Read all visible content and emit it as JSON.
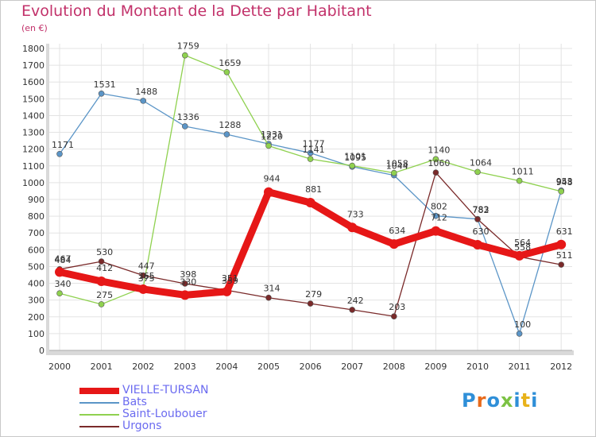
{
  "page": {
    "title": "Evolution du Montant de la Dette par Habitant",
    "unit": "(en €)",
    "logo": "Proxiti"
  },
  "colors": {
    "title": "#c2316a",
    "axis_text": "#333333",
    "grid": "#e3e3e3",
    "plot_bg": "#ffffff",
    "frame_bg": "#d9d9d9",
    "legend_text": "#6b6bf0",
    "logo_letters": [
      "#2f8fd8",
      "#e86a1a",
      "#2f8fd8",
      "#7cc244",
      "#2f8fd8",
      "#e8b21a",
      "#2f8fd8"
    ]
  },
  "chart_data": {
    "type": "line",
    "title": "Evolution du Montant de la Dette par Habitant",
    "subtitle": "(en €)",
    "xlabel": "",
    "ylabel": "",
    "categories": [
      "2000",
      "2001",
      "2002",
      "2003",
      "2004",
      "2005",
      "2006",
      "2007",
      "2008",
      "2009",
      "2010",
      "2011",
      "2012"
    ],
    "ylim": [
      0,
      1800
    ],
    "yticks": [
      0,
      100,
      200,
      300,
      400,
      500,
      600,
      700,
      800,
      900,
      1000,
      1100,
      1200,
      1300,
      1400,
      1500,
      1600,
      1700,
      1800
    ],
    "grid": true,
    "legend_position": "bottom-left",
    "series": [
      {
        "name": "VIELLE-TURSAN",
        "color": "#e61717",
        "values": [
          467,
          412,
          365,
          330,
          351,
          944,
          881,
          733,
          634,
          712,
          630,
          564,
          631
        ],
        "labels": [
          "467",
          "412",
          "365",
          "330",
          "351",
          "944",
          "881",
          "733",
          "634",
          "712",
          "630",
          "564",
          "631"
        ],
        "bold": true
      },
      {
        "name": "Bats",
        "color": "#5b95c7",
        "values": [
          1171,
          1531,
          1488,
          1336,
          1288,
          1231,
          1177,
          1095,
          1044,
          802,
          783,
          100,
          953
        ],
        "labels": [
          "1171",
          "1531",
          "1488",
          "1336",
          "1288",
          "1231",
          "1177",
          "1095",
          "1044",
          "802",
          "783",
          "100",
          "953"
        ],
        "bold": false
      },
      {
        "name": "Saint-Loubouer",
        "color": "#8fd14f",
        "values": [
          340,
          275,
          375,
          1759,
          1659,
          1220,
          1141,
          1101,
          1058,
          1140,
          1064,
          1011,
          948
        ],
        "labels": [
          "340",
          "275",
          "375",
          "1759",
          "1659",
          "1220",
          "1141",
          "1101",
          "1058",
          "1140",
          "1064",
          "1011",
          "948"
        ],
        "bold": false
      },
      {
        "name": "Urgons",
        "color": "#7a2a2a",
        "values": [
          484,
          530,
          447,
          398,
          359,
          314,
          279,
          242,
          203,
          1060,
          782,
          558,
          511
        ],
        "labels": [
          "484",
          "530",
          "447",
          "398",
          "359",
          "314",
          "279",
          "242",
          "203",
          "1060",
          "782",
          "558",
          "511"
        ],
        "bold": false
      }
    ]
  }
}
